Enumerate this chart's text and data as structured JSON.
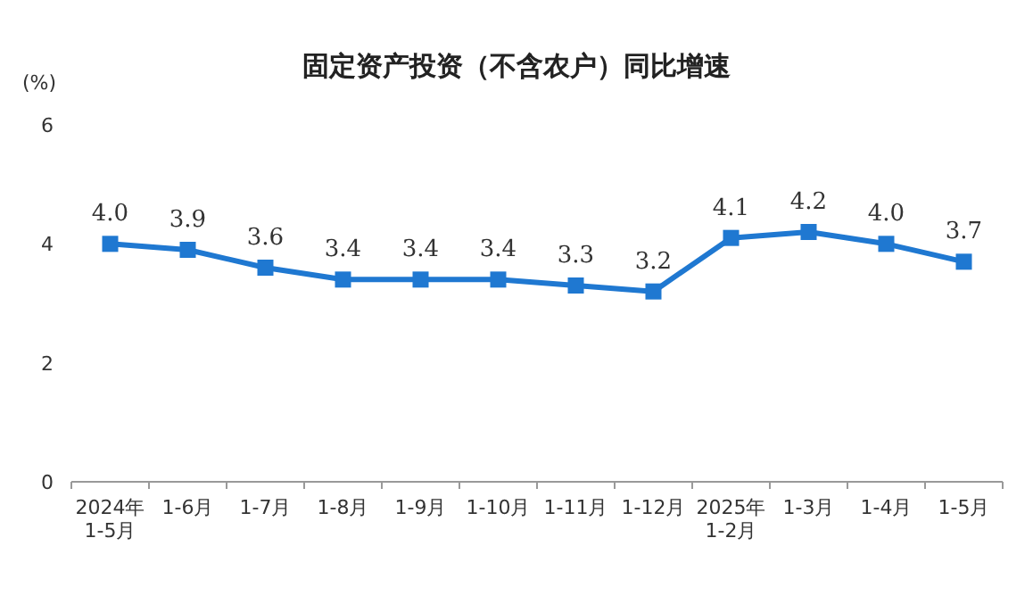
{
  "chart_data": {
    "type": "line",
    "title": "固定资产投资（不含农户）同比增速",
    "ylabel": "(%)",
    "categories": [
      "2024年\n1-5月",
      "1-6月",
      "1-7月",
      "1-8月",
      "1-9月",
      "1-10月",
      "1-11月",
      "1-12月",
      "2025年\n1-2月",
      "1-3月",
      "1-4月",
      "1-5月"
    ],
    "series": [
      {
        "color": "#1f78d1",
        "values": [
          4.0,
          3.9,
          3.6,
          3.4,
          3.4,
          3.4,
          3.3,
          3.2,
          4.1,
          4.2,
          4.0,
          3.7
        ],
        "value_labels": [
          "4.0",
          "3.9",
          "3.6",
          "3.4",
          "3.4",
          "3.4",
          "3.3",
          "3.2",
          "4.1",
          "4.2",
          "4.0",
          "3.7"
        ]
      }
    ],
    "ylim": [
      0,
      6
    ],
    "yticks": [
      0,
      2,
      4,
      6
    ],
    "marker": "square",
    "line_style": "solid",
    "grid": false
  }
}
